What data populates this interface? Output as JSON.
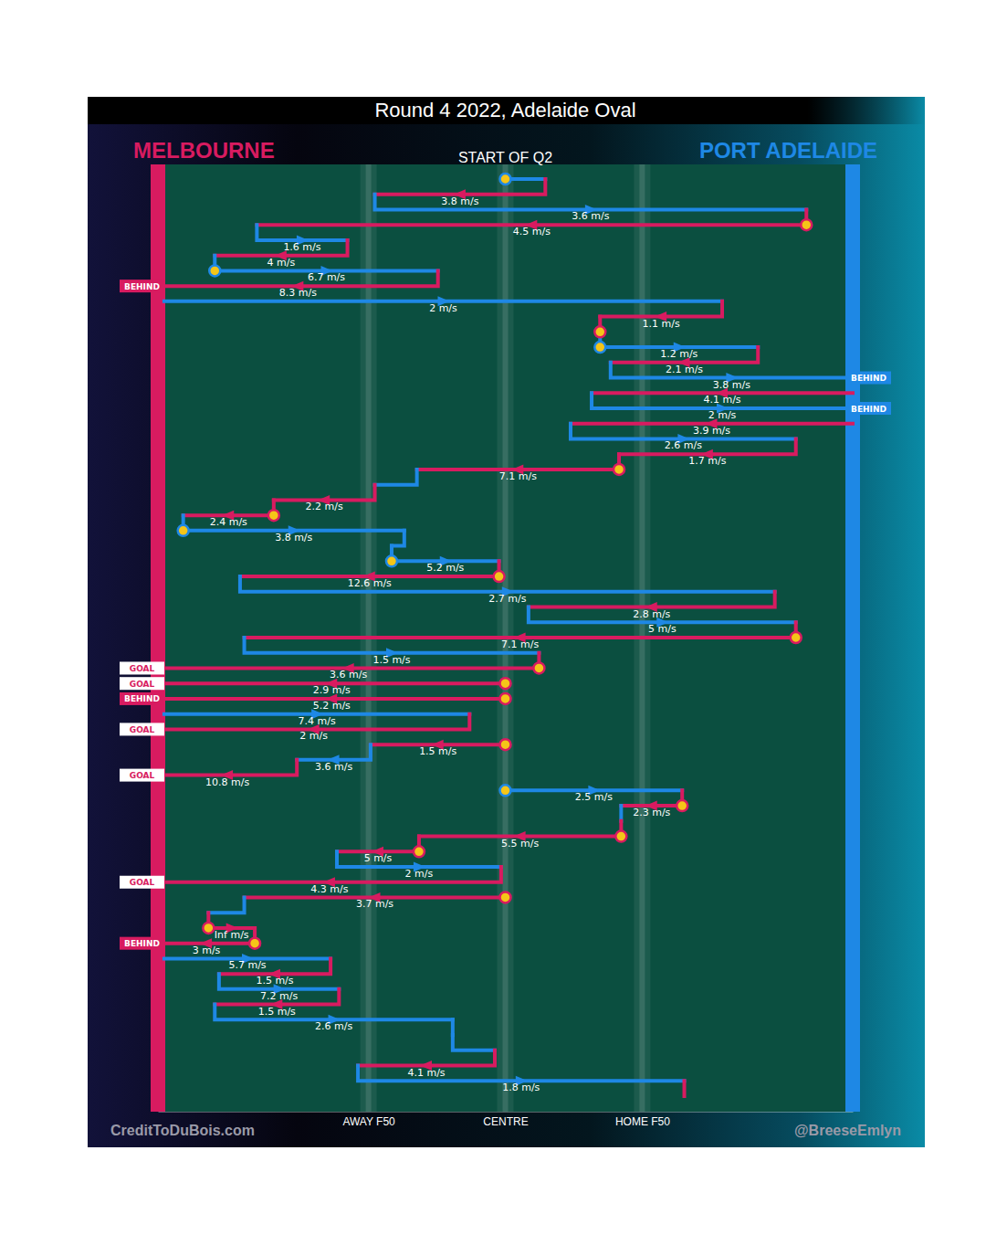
{
  "chart_data": {
    "type": "possession_chain",
    "title": "Round 4 2022, Adelaide Oval",
    "annotation": "START OF Q2",
    "credits": [
      "CreditToDuBois.com",
      "@BreeseEmlyn"
    ],
    "teams": [
      {
        "name": "MELBOURNE",
        "color": "#d81b60"
      },
      {
        "name": "PORT ADELAIDE",
        "color": "#1e88e5"
      }
    ],
    "results": [
      "GOAL",
      "BEHIND"
    ],
    "xlim": [
      0,
      165
    ],
    "xticks": [
      {
        "value": 50,
        "label": "AWAY F50"
      },
      {
        "value": 82.5,
        "label": "CENTRE"
      },
      {
        "value": 115,
        "label": "HOME F50"
      }
    ],
    "grid": true,
    "moves": [
      {
        "team": "PORT ADELAIDE",
        "from": 82.5,
        "to": 92,
        "turnover": true
      },
      {
        "team": "MELBOURNE",
        "from": 92,
        "to": 51.5,
        "speed": 3.8,
        "speed_label": "3.8 m/s"
      },
      {
        "team": "PORT ADELAIDE",
        "from": 51.5,
        "to": 154,
        "speed": 3.6,
        "speed_label": "3.6 m/s"
      },
      {
        "team": "MELBOURNE",
        "from": 154,
        "to": 23.5,
        "speed": 4.5,
        "speed_label": "4.5 m/s",
        "turnover": true
      },
      {
        "team": "PORT ADELAIDE",
        "from": 23.5,
        "to": 45,
        "speed": 1.6,
        "speed_label": "1.6 m/s"
      },
      {
        "team": "MELBOURNE",
        "from": 45,
        "to": 13.5,
        "speed": 4,
        "speed_label": "4 m/s"
      },
      {
        "team": "PORT ADELAIDE",
        "from": 13.5,
        "to": 66.5,
        "speed": 6.7,
        "speed_label": "6.7 m/s",
        "turnover": true
      },
      {
        "team": "MELBOURNE",
        "from": 66.5,
        "to": 0,
        "speed": 8.3,
        "speed_label": "8.3 m/s",
        "result": "BEHIND"
      },
      {
        "team": "PORT ADELAIDE",
        "from": 1.5,
        "to": 134,
        "speed": 2,
        "speed_label": "2 m/s"
      },
      {
        "team": "MELBOURNE",
        "from": 134,
        "to": 105,
        "speed": 1.1,
        "speed_label": "1.1 m/s"
      },
      {
        "team": "MELBOURNE",
        "from": 105,
        "to": 105,
        "turnover": true
      },
      {
        "team": "PORT ADELAIDE",
        "from": 105,
        "to": 142.5,
        "speed": 1.2,
        "speed_label": "1.2 m/s",
        "turnover": true
      },
      {
        "team": "MELBOURNE",
        "from": 142.5,
        "to": 107.5,
        "speed": 2.1,
        "speed_label": "2.1 m/s"
      },
      {
        "team": "PORT ADELAIDE",
        "from": 107.5,
        "to": 165,
        "speed": 3.8,
        "speed_label": "3.8 m/s",
        "result": "BEHIND"
      },
      {
        "team": "MELBOURNE",
        "from": 165,
        "to": 103,
        "speed": 4.1,
        "speed_label": "4.1 m/s"
      },
      {
        "team": "PORT ADELAIDE",
        "from": 103,
        "to": 165,
        "speed": 2,
        "speed_label": "2 m/s",
        "result": "BEHIND"
      },
      {
        "team": "MELBOURNE",
        "from": 165,
        "to": 98,
        "speed": 3.9,
        "speed_label": "3.9 m/s"
      },
      {
        "team": "PORT ADELAIDE",
        "from": 98,
        "to": 151.5,
        "speed": 2.6,
        "speed_label": "2.6 m/s"
      },
      {
        "team": "MELBOURNE",
        "from": 151.5,
        "to": 109.5,
        "speed": 1.7,
        "speed_label": "1.7 m/s"
      },
      {
        "team": "MELBOURNE",
        "from": 109.5,
        "to": 61.5,
        "speed": 7.1,
        "speed_label": "7.1 m/s",
        "turnover": true
      },
      {
        "team": "PORT ADELAIDE",
        "from": 61.5,
        "to": 51.5
      },
      {
        "team": "MELBOURNE",
        "from": 51.5,
        "to": 27.5,
        "speed": 2.2,
        "speed_label": "2.2 m/s"
      },
      {
        "team": "MELBOURNE",
        "from": 27.5,
        "to": 6,
        "speed": 2.4,
        "speed_label": "2.4 m/s",
        "turnover": true
      },
      {
        "team": "PORT ADELAIDE",
        "from": 6,
        "to": 58.5,
        "speed": 3.8,
        "speed_label": "3.8 m/s",
        "turnover": true
      },
      {
        "team": "PORT ADELAIDE",
        "from": 58.5,
        "to": 55.5
      },
      {
        "team": "PORT ADELAIDE",
        "from": 55.5,
        "to": 81,
        "speed": 5.2,
        "speed_label": "5.2 m/s",
        "turnover": true
      },
      {
        "team": "MELBOURNE",
        "from": 81,
        "to": 19.5,
        "speed": 12.6,
        "speed_label": "12.6 m/s",
        "turnover": true
      },
      {
        "team": "PORT ADELAIDE",
        "from": 19.5,
        "to": 146.5,
        "speed": 2.7,
        "speed_label": "2.7 m/s"
      },
      {
        "team": "MELBOURNE",
        "from": 146.5,
        "to": 88,
        "speed": 2.8,
        "speed_label": "2.8 m/s"
      },
      {
        "team": "PORT ADELAIDE",
        "from": 88,
        "to": 151.5,
        "speed": 5,
        "speed_label": "5 m/s"
      },
      {
        "team": "MELBOURNE",
        "from": 151.5,
        "to": 20.5,
        "speed": 7.1,
        "speed_label": "7.1 m/s",
        "turnover": true
      },
      {
        "team": "PORT ADELAIDE",
        "from": 20.5,
        "to": 90.5,
        "speed": 1.5,
        "speed_label": "1.5 m/s"
      },
      {
        "team": "MELBOURNE",
        "from": 90.5,
        "to": 0,
        "speed": 3.6,
        "speed_label": "3.6 m/s",
        "turnover": true,
        "result": "GOAL"
      },
      {
        "team": "MELBOURNE",
        "from": 82.5,
        "to": 0,
        "speed": 2.9,
        "speed_label": "2.9 m/s",
        "turnover": true,
        "result": "GOAL"
      },
      {
        "team": "MELBOURNE",
        "from": 82.5,
        "to": 0,
        "speed": 5.2,
        "speed_label": "5.2 m/s",
        "turnover": true,
        "result": "BEHIND"
      },
      {
        "team": "PORT ADELAIDE",
        "from": 1.5,
        "to": 74,
        "speed": 7.4,
        "speed_label": "7.4 m/s"
      },
      {
        "team": "MELBOURNE",
        "from": 74,
        "to": 0,
        "speed": 2,
        "speed_label": "2 m/s",
        "result": "GOAL"
      },
      {
        "team": "MELBOURNE",
        "from": 82.5,
        "to": 50.5,
        "speed": 1.5,
        "speed_label": "1.5 m/s",
        "turnover": true
      },
      {
        "team": "PORT ADELAIDE",
        "from": 50.5,
        "to": 33,
        "speed": 3.6,
        "speed_label": "3.6 m/s"
      },
      {
        "team": "MELBOURNE",
        "from": 33,
        "to": 0,
        "speed": 10.8,
        "speed_label": "10.8 m/s",
        "result": "GOAL"
      },
      {
        "team": "PORT ADELAIDE",
        "from": 82.5,
        "to": 124.5,
        "speed": 2.5,
        "speed_label": "2.5 m/s",
        "turnover": true
      },
      {
        "team": "MELBOURNE",
        "from": 124.5,
        "to": 110,
        "speed": 2.3,
        "speed_label": "2.3 m/s",
        "turnover": true
      },
      {
        "team": "PORT ADELAIDE",
        "from": 110,
        "to": 110
      },
      {
        "team": "MELBOURNE",
        "from": 110,
        "to": 62,
        "speed": 5.5,
        "speed_label": "5.5 m/s",
        "turnover": true
      },
      {
        "team": "MELBOURNE",
        "from": 62,
        "to": 42.5,
        "speed": 5,
        "speed_label": "5 m/s",
        "turnover": true
      },
      {
        "team": "PORT ADELAIDE",
        "from": 42.5,
        "to": 81.5,
        "speed": 2,
        "speed_label": "2 m/s"
      },
      {
        "team": "MELBOURNE",
        "from": 81.5,
        "to": 0,
        "speed": 4.3,
        "speed_label": "4.3 m/s",
        "result": "GOAL"
      },
      {
        "team": "MELBOURNE",
        "from": 82.5,
        "to": 20.5,
        "speed": 3.7,
        "speed_label": "3.7 m/s",
        "turnover": true
      },
      {
        "team": "PORT ADELAIDE",
        "from": 20.5,
        "to": 12
      },
      {
        "team": "MELBOURNE",
        "from": 12,
        "to": 23,
        "speed": null,
        "speed_label": "Inf m/s",
        "turnover": true
      },
      {
        "team": "MELBOURNE",
        "from": 23,
        "to": 0,
        "speed": 3,
        "speed_label": "3 m/s",
        "turnover": true,
        "result": "BEHIND"
      },
      {
        "team": "PORT ADELAIDE",
        "from": 1.5,
        "to": 41,
        "speed": 5.7,
        "speed_label": "5.7 m/s"
      },
      {
        "team": "MELBOURNE",
        "from": 41,
        "to": 14.5,
        "speed": 1.5,
        "speed_label": "1.5 m/s"
      },
      {
        "team": "PORT ADELAIDE",
        "from": 14.5,
        "to": 43,
        "speed": 7.2,
        "speed_label": "7.2 m/s"
      },
      {
        "team": "MELBOURNE",
        "from": 43,
        "to": 13.5,
        "speed": 1.5,
        "speed_label": "1.5 m/s"
      },
      {
        "team": "PORT ADELAIDE",
        "from": 13.5,
        "to": 70,
        "speed": 2.6,
        "speed_label": "2.6 m/s"
      },
      {
        "team": "PORT ADELAIDE",
        "from": 70,
        "to": 70
      },
      {
        "team": "PORT ADELAIDE",
        "from": 70,
        "to": 80
      },
      {
        "team": "MELBOURNE",
        "from": 80,
        "to": 47.5,
        "speed": 4.1,
        "speed_label": "4.1 m/s"
      },
      {
        "team": "PORT ADELAIDE",
        "from": 47.5,
        "to": 125,
        "speed": 1.8,
        "speed_label": "1.8 m/s"
      },
      {
        "team": "MELBOURNE",
        "from": 125,
        "to": 125
      }
    ]
  }
}
